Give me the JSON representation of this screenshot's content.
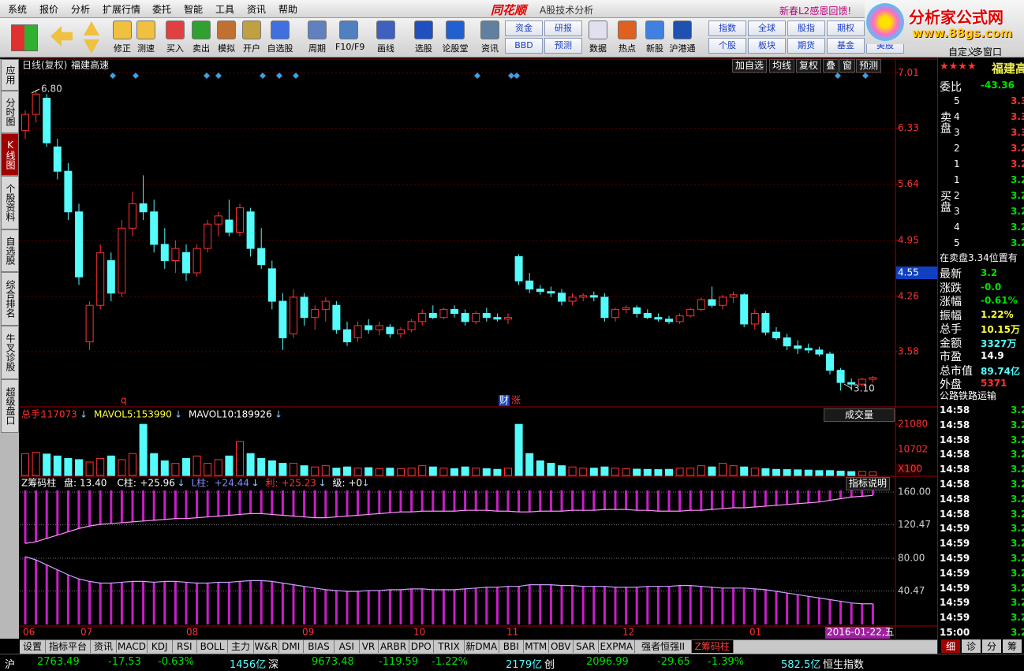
{
  "menu": [
    "系统",
    "报价",
    "分析",
    "扩展行情",
    "委托",
    "智能",
    "工具",
    "资讯",
    "帮助"
  ],
  "brand": {
    "logo": "同花顺",
    "caption": "A股技术分析",
    "promo": "新春L2感恩回馈!",
    "site_name": "分析家公式网",
    "site_url": "www.88gs.com"
  },
  "toolbar": [
    [
      "修正"
    ],
    [
      "测速"
    ],
    [
      "买入"
    ],
    [
      "卖出"
    ],
    [
      "模拟"
    ],
    [
      "开户"
    ],
    [
      "自选股"
    ],
    [
      "周期"
    ],
    [
      "F10/F9"
    ],
    [
      "画线"
    ],
    [
      "选股"
    ],
    [
      "论股堂"
    ],
    [
      "资讯"
    ],
    [
      "资金",
      "BBD"
    ],
    [
      "研报",
      "预测"
    ],
    [
      "数据"
    ],
    [
      "热点"
    ],
    [
      "新股"
    ],
    [
      "沪港通"
    ],
    [
      "指数",
      "个股"
    ],
    [
      "全球",
      "板块"
    ],
    [
      "股指",
      "期货"
    ],
    [
      "期权",
      "基金"
    ],
    [
      "外汇",
      "美股"
    ]
  ],
  "view_buttons": [
    "自定义",
    "多窗口"
  ],
  "side_tabs": [
    "应用",
    "分时图",
    "K线图",
    "个股资料",
    "自选股",
    "综合排名",
    "牛叉诊股",
    "超级盘口"
  ],
  "side_active": 2,
  "chart_tools": [
    "加自选",
    "均线",
    "复权",
    "叠",
    "窗",
    "预测"
  ],
  "chart_data": [
    {
      "type": "candlestick",
      "subtitle": "日线(复权)",
      "title": "福建高速",
      "up_color": "#ff3232",
      "down_color": "#54fcfc",
      "ylim": [
        2.91,
        7.18
      ],
      "yticks": [
        7.01,
        6.33,
        5.64,
        4.95,
        4.26,
        3.58
      ],
      "highlight_tick": 4.55,
      "grid": true,
      "annotations": [
        "6.80",
        "3.10"
      ],
      "markers": [
        "q",
        "财",
        "涨"
      ],
      "x_labels": [
        "06",
        "07",
        "08",
        "09",
        "10",
        "11",
        "12",
        "01"
      ],
      "x_end_label": "2016-01-22,五",
      "candles": [
        [
          6.3,
          6.55,
          6.2,
          6.5
        ],
        [
          6.5,
          6.8,
          6.4,
          6.75
        ],
        [
          6.7,
          6.75,
          6.1,
          6.15
        ],
        [
          6.1,
          6.2,
          5.7,
          5.8
        ],
        [
          5.8,
          5.9,
          5.2,
          5.3
        ],
        [
          5.3,
          5.4,
          4.4,
          4.5
        ],
        [
          3.7,
          4.2,
          3.6,
          4.15
        ],
        [
          4.15,
          4.9,
          4.1,
          4.8
        ],
        [
          4.7,
          4.8,
          4.2,
          4.3
        ],
        [
          4.3,
          5.2,
          4.25,
          5.1
        ],
        [
          5.1,
          5.55,
          5.0,
          5.4
        ],
        [
          5.4,
          5.75,
          5.2,
          5.3
        ],
        [
          5.3,
          5.45,
          4.8,
          4.9
        ],
        [
          4.9,
          5.1,
          4.6,
          4.7
        ],
        [
          4.7,
          4.95,
          4.55,
          4.85
        ],
        [
          4.8,
          4.9,
          4.45,
          4.55
        ],
        [
          4.55,
          4.9,
          4.5,
          4.85
        ],
        [
          4.85,
          5.2,
          4.8,
          5.15
        ],
        [
          5.15,
          5.3,
          5.0,
          5.25
        ],
        [
          5.2,
          5.45,
          5.0,
          5.05
        ],
        [
          5.05,
          5.4,
          5.0,
          5.35
        ],
        [
          5.3,
          5.35,
          4.75,
          4.85
        ],
        [
          4.85,
          5.1,
          4.6,
          4.65
        ],
        [
          4.6,
          4.7,
          4.1,
          4.2
        ],
        [
          4.2,
          4.3,
          3.6,
          3.75
        ],
        [
          3.8,
          4.35,
          3.75,
          4.25
        ],
        [
          4.25,
          4.3,
          3.9,
          4.0
        ],
        [
          4.0,
          4.15,
          3.85,
          4.1
        ],
        [
          4.1,
          4.25,
          3.95,
          4.2
        ],
        [
          4.15,
          4.2,
          3.8,
          3.85
        ],
        [
          3.85,
          3.95,
          3.65,
          3.7
        ],
        [
          3.75,
          3.95,
          3.7,
          3.9
        ],
        [
          3.9,
          3.98,
          3.8,
          3.85
        ],
        [
          3.85,
          3.95,
          3.78,
          3.9
        ],
        [
          3.88,
          3.92,
          3.75,
          3.8
        ],
        [
          3.8,
          3.88,
          3.75,
          3.85
        ],
        [
          3.85,
          3.98,
          3.82,
          3.95
        ],
        [
          3.95,
          4.1,
          3.9,
          4.05
        ],
        [
          4.05,
          4.15,
          3.98,
          4.0
        ],
        [
          4.0,
          4.12,
          3.98,
          4.1
        ],
        [
          4.1,
          4.15,
          4.0,
          4.05
        ],
        [
          4.05,
          4.1,
          3.9,
          3.95
        ],
        [
          3.95,
          4.08,
          3.92,
          4.05
        ],
        [
          4.05,
          4.12,
          3.95,
          4.0
        ],
        [
          4.0,
          4.05,
          3.95,
          3.98
        ],
        [
          3.98,
          4.05,
          3.92,
          4.0
        ],
        [
          4.75,
          4.78,
          4.4,
          4.45
        ],
        [
          4.45,
          4.55,
          4.3,
          4.35
        ],
        [
          4.35,
          4.4,
          4.28,
          4.32
        ],
        [
          4.32,
          4.38,
          4.25,
          4.3
        ],
        [
          4.3,
          4.35,
          4.15,
          4.2
        ],
        [
          4.2,
          4.3,
          4.15,
          4.25
        ],
        [
          4.25,
          4.3,
          4.2,
          4.27
        ],
        [
          4.27,
          4.32,
          4.2,
          4.25
        ],
        [
          4.25,
          4.3,
          3.95,
          4.0
        ],
        [
          4.0,
          4.12,
          3.95,
          4.1
        ],
        [
          4.1,
          4.15,
          4.05,
          4.12
        ],
        [
          4.12,
          4.15,
          4.0,
          4.05
        ],
        [
          4.05,
          4.1,
          3.98,
          4.0
        ],
        [
          4.0,
          4.05,
          3.95,
          3.98
        ],
        [
          3.98,
          4.02,
          3.92,
          3.95
        ],
        [
          3.95,
          4.05,
          3.92,
          4.02
        ],
        [
          4.02,
          4.12,
          4.0,
          4.1
        ],
        [
          4.1,
          4.25,
          4.08,
          4.22
        ],
        [
          4.22,
          4.38,
          4.12,
          4.15
        ],
        [
          4.15,
          4.28,
          4.1,
          4.25
        ],
        [
          4.25,
          4.32,
          4.18,
          4.28
        ],
        [
          4.28,
          4.3,
          3.88,
          3.92
        ],
        [
          3.92,
          4.1,
          3.85,
          4.05
        ],
        [
          4.05,
          4.08,
          3.78,
          3.82
        ],
        [
          3.82,
          3.88,
          3.72,
          3.75
        ],
        [
          3.75,
          3.8,
          3.6,
          3.65
        ],
        [
          3.65,
          3.72,
          3.55,
          3.62
        ],
        [
          3.62,
          3.68,
          3.56,
          3.6
        ],
        [
          3.6,
          3.64,
          3.52,
          3.55
        ],
        [
          3.55,
          3.58,
          3.3,
          3.35
        ],
        [
          3.35,
          3.38,
          3.1,
          3.2
        ],
        [
          3.2,
          3.25,
          3.1,
          3.18
        ],
        [
          3.18,
          3.26,
          3.15,
          3.24
        ],
        [
          3.24,
          3.28,
          3.2,
          3.26
        ]
      ]
    },
    {
      "type": "bar",
      "title": "成交量",
      "scale_label": "X100",
      "ylim": [
        0,
        23000
      ],
      "yticks": [
        10702,
        21080
      ],
      "legend": [
        {
          "label": "总手:",
          "value": "117073",
          "trend": "↓",
          "color": "#ff3232"
        },
        {
          "label": "MAVOL5:",
          "value": "153990",
          "trend": "↓",
          "color": "#ffff40"
        },
        {
          "label": "MAVOL10:",
          "value": "189926",
          "trend": "↓",
          "color": "#ffffff"
        }
      ],
      "values": [
        9000,
        9500,
        8800,
        8000,
        7000,
        6500,
        5500,
        7000,
        8000,
        6500,
        9000,
        21000,
        9000,
        6000,
        5000,
        7000,
        8000,
        5000,
        6500,
        8000,
        14000,
        9000,
        7000,
        6000,
        5000,
        5000,
        4000,
        3500,
        4000,
        3000,
        3500,
        3000,
        3200,
        2800,
        3000,
        2800,
        3000,
        4000,
        3500,
        3000,
        2800,
        3500,
        3000,
        2800,
        2500,
        3000,
        21000,
        9000,
        6000,
        5000,
        4000,
        3500,
        3000,
        3000,
        3500,
        3000,
        2800,
        2600,
        2500,
        2400,
        2500,
        3000,
        3000,
        4000,
        3500,
        5000,
        4000,
        3500,
        3000,
        2800,
        2500,
        2400,
        2300,
        2200,
        2000,
        2000,
        1800,
        1600,
        1700,
        1500
      ]
    },
    {
      "type": "chip-bars",
      "title": "Z筹码柱",
      "help": "指标说明",
      "ylim": [
        -1,
        162
      ],
      "yticks": [
        {
          "value": 160,
          "label": "160.00"
        },
        120.47,
        {
          "value": 80,
          "label": "80.00"
        },
        40.47
      ],
      "legend": [
        {
          "label": "盘:",
          "value": "13.40",
          "color": "#ffffff"
        },
        {
          "label": "C柱:",
          "value": "+25.96",
          "trend": "↓",
          "color": "#ffffff"
        },
        {
          "label": "L柱:",
          "value": "+24.44",
          "trend": "↓",
          "color": "#8c8cff"
        },
        {
          "label": "利:",
          "value": "+25.23",
          "trend": "↓",
          "color": "#ff3232"
        },
        {
          "label": "级:",
          "value": "+0",
          "trend": "↓",
          "color": "#ffffff"
        }
      ],
      "series": [
        {
          "color": "#c81ec8",
          "line_color": "#ff90ff",
          "fill": "down",
          "values": [
            98,
            100,
            104,
            108,
            112,
            116,
            119,
            121,
            122,
            123,
            124,
            125,
            126,
            127,
            128,
            128,
            129,
            130,
            131,
            132,
            133,
            134,
            134,
            133,
            132,
            131,
            130,
            129,
            129,
            130,
            131,
            132,
            133,
            134,
            135,
            136,
            136,
            137,
            137,
            137,
            137,
            138,
            138,
            138,
            137,
            137,
            136,
            136,
            137,
            137,
            137,
            138,
            138,
            138,
            139,
            139,
            139,
            138,
            138,
            137,
            137,
            137,
            138,
            138,
            139,
            140,
            141,
            141,
            142,
            143,
            144,
            145,
            146,
            147,
            148,
            150,
            152,
            154,
            155,
            156
          ]
        },
        {
          "color": "#c81ec8",
          "line_color": "#c8a0ff",
          "fill": "up",
          "values": [
            82,
            78,
            72,
            66,
            60,
            55,
            52,
            50,
            50,
            51,
            52,
            52,
            51,
            52,
            52,
            51,
            50,
            50,
            51,
            51,
            52,
            53,
            53,
            52,
            50,
            48,
            46,
            44,
            42,
            41,
            40,
            40,
            41,
            41,
            42,
            42,
            43,
            43,
            42,
            42,
            42,
            43,
            44,
            45,
            45,
            46,
            46,
            48,
            48,
            48,
            47,
            47,
            46,
            46,
            46,
            45,
            45,
            45,
            46,
            46,
            46,
            47,
            47,
            46,
            45,
            44,
            44,
            44,
            43,
            42,
            40,
            38,
            36,
            34,
            32,
            30,
            28,
            26,
            25,
            25
          ]
        }
      ]
    }
  ],
  "indicator_tabs": [
    "设置",
    "指标平台",
    "资讯",
    "MACD",
    "KDJ",
    "RSI",
    "BOLL",
    "主力",
    "W&R",
    "DMI",
    "BIAS",
    "ASI",
    "VR",
    "ARBR",
    "DPO",
    "TRIX",
    "新DMA",
    "BBI",
    "MTM",
    "OBV",
    "SAR",
    "EXPMA",
    "强者恒强II",
    "Z筹码柱"
  ],
  "indicator_active": 23,
  "quote_panel": {
    "rating": "★★★★",
    "name": "福建高",
    "ratio_label": "委比",
    "ratio_value": "-43.36",
    "sell_label": "卖盘",
    "sell": [
      [
        "5",
        "3.3"
      ],
      [
        "4",
        "3.3"
      ],
      [
        "3",
        "3.3"
      ],
      [
        "2",
        "3.2"
      ],
      [
        "1",
        "3.2"
      ]
    ],
    "buy_label": "买盘",
    "buy": [
      [
        "1",
        "3.2"
      ],
      [
        "2",
        "3.2"
      ],
      [
        "3",
        "3.2"
      ],
      [
        "4",
        "3.2"
      ],
      [
        "5",
        "3.2"
      ]
    ],
    "note": "在卖盘3.34位置有",
    "stats": [
      {
        "label": "最新",
        "value": "3.2",
        "color": "#00e000"
      },
      {
        "label": "涨跌",
        "value": "-0.0",
        "color": "#00e000"
      },
      {
        "label": "涨幅",
        "value": "-0.61%",
        "color": "#00e000"
      },
      {
        "label": "振幅",
        "value": "1.22%",
        "color": "#ffff40"
      },
      {
        "label": "总手",
        "value": "10.15万",
        "color": "#ffff40"
      },
      {
        "label": "金额",
        "value": "3327万",
        "color": "#54fcfc"
      },
      {
        "label": "市盈",
        "value": "14.9",
        "color": "#ffffff"
      },
      {
        "label": "总市值",
        "value": "89.74亿",
        "color": "#54fcfc"
      },
      {
        "label": "外盘",
        "value": "5371",
        "color": "#ff3232"
      }
    ],
    "industry": "公路铁路运输",
    "ticks": [
      [
        "14:58",
        "3.2"
      ],
      [
        "14:58",
        "3.2"
      ],
      [
        "14:58",
        "3.2"
      ],
      [
        "14:58",
        "3.2"
      ],
      [
        "14:58",
        "3.2"
      ],
      [
        "14:58",
        "3.2"
      ],
      [
        "14:58",
        "3.2"
      ],
      [
        "14:58",
        "3.2"
      ],
      [
        "14:59",
        "3.2"
      ],
      [
        "14:59",
        "3.2"
      ],
      [
        "14:59",
        "3.2"
      ],
      [
        "14:59",
        "3.2"
      ],
      [
        "14:59",
        "3.2"
      ],
      [
        "14:59",
        "3.2"
      ],
      [
        "14:59",
        "3.2"
      ],
      [
        "15:00",
        "3.2"
      ]
    ],
    "tabs": [
      "细",
      "诊",
      "分",
      "筹"
    ]
  },
  "status_bar": [
    {
      "text": "沪",
      "color": "#ffffff"
    },
    {
      "text": "2763.49",
      "color": "#00e000"
    },
    {
      "text": "-17.53",
      "color": "#00e000"
    },
    {
      "text": "-0.63%",
      "color": "#00e000"
    },
    {
      "text": "1456亿",
      "color": "#54fcfc"
    },
    {
      "text": "深",
      "color": "#ffffff"
    },
    {
      "text": "9673.48",
      "color": "#00e000"
    },
    {
      "text": "-119.59",
      "color": "#00e000"
    },
    {
      "text": "-1.22%",
      "color": "#00e000"
    },
    {
      "text": "2179亿",
      "color": "#54fcfc"
    },
    {
      "text": "创",
      "color": "#ffffff"
    },
    {
      "text": "2096.99",
      "color": "#00e000"
    },
    {
      "text": "-29.65",
      "color": "#00e000"
    },
    {
      "text": "-1.39%",
      "color": "#00e000"
    },
    {
      "text": "582.5亿",
      "color": "#54fcfc"
    },
    {
      "text": "恒生指数",
      "color": "#ffffff"
    }
  ]
}
